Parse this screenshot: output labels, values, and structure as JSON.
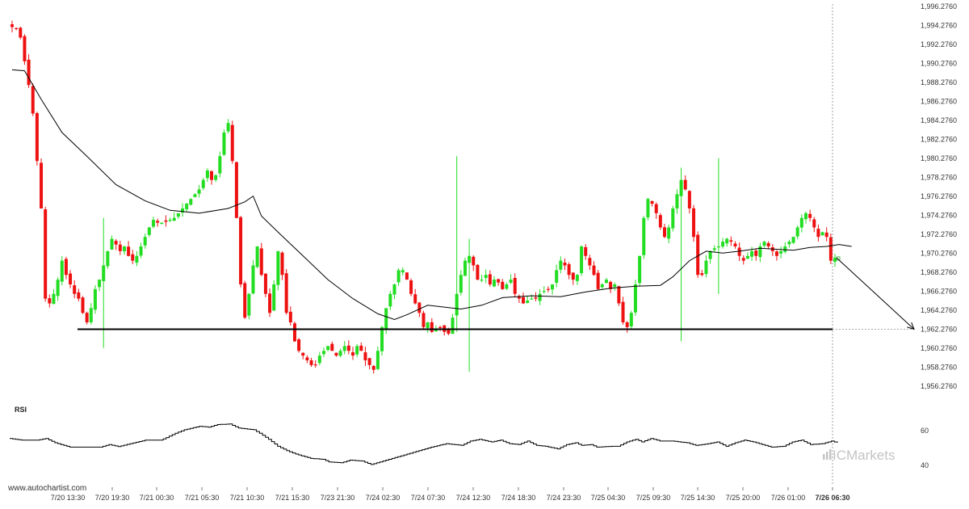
{
  "watermark": "www.autochartist.com",
  "brand": "ICMarkets",
  "indicator_label": "RSI",
  "chart_data": [
    {
      "type": "candlestick",
      "y_ticks": [
        "1,996.2760",
        "1,994.2760",
        "1,992.2760",
        "1,990.2760",
        "1,988.2760",
        "1,986.2760",
        "1,984.2760",
        "1,982.2760",
        "1,980.2760",
        "1,978.2760",
        "1,976.2760",
        "1,974.2760",
        "1,972.2760",
        "1,970.2760",
        "1,968.2760",
        "1,966.2760",
        "1,964.2760",
        "1,962.2760",
        "1,960.2760",
        "1,958.2760",
        "1,956.2760"
      ],
      "ylim": [
        1955.0,
        1996.28
      ],
      "x_ticks": [
        "7/20 13:30",
        "7/20 19:30",
        "7/21 00:30",
        "7/21 05:30",
        "7/21 10:30",
        "7/21 15:30",
        "7/23 21:30",
        "7/24 02:30",
        "7/24 07:30",
        "7/24 12:30",
        "7/24 18:30",
        "7/24 23:30",
        "7/25 04:30",
        "7/25 09:30",
        "7/25 14:30",
        "7/25 20:00",
        "7/26 01:00",
        "7/26 06:30"
      ],
      "support_level": 1962.276,
      "candle_count": 180,
      "moving_average_anchors": [
        [
          0,
          1989.6
        ],
        [
          3,
          1989.5
        ],
        [
          7,
          1986.5
        ],
        [
          12,
          1983.0
        ],
        [
          18,
          1980.5
        ],
        [
          25,
          1977.5
        ],
        [
          32,
          1975.8
        ],
        [
          38,
          1974.8
        ],
        [
          45,
          1974.5
        ],
        [
          52,
          1975.0
        ],
        [
          56,
          1975.7
        ],
        [
          58,
          1976.3
        ],
        [
          60,
          1974.2
        ],
        [
          64,
          1972.5
        ],
        [
          70,
          1970.0
        ],
        [
          76,
          1967.5
        ],
        [
          82,
          1965.5
        ],
        [
          88,
          1963.9
        ],
        [
          92,
          1963.3
        ],
        [
          95,
          1963.8
        ],
        [
          100,
          1964.8
        ],
        [
          108,
          1964.4
        ],
        [
          113,
          1964.8
        ],
        [
          118,
          1965.6
        ],
        [
          125,
          1965.8
        ],
        [
          132,
          1965.7
        ],
        [
          138,
          1966.2
        ],
        [
          144,
          1966.6
        ],
        [
          150,
          1966.8
        ],
        [
          156,
          1966.9
        ],
        [
          159,
          1967.8
        ],
        [
          163,
          1969.5
        ],
        [
          167,
          1970.5
        ],
        [
          171,
          1970.3
        ],
        [
          175,
          1970.5
        ],
        [
          180,
          1970.8
        ],
        [
          188,
          1970.6
        ],
        [
          192,
          1970.9
        ],
        [
          196,
          1971.0
        ],
        [
          199,
          1971.2
        ],
        [
          202,
          1971.0
        ]
      ],
      "candle_anchors": [
        [
          0,
          1994.1
        ],
        [
          1,
          1993.9
        ],
        [
          2,
          1993.0
        ],
        [
          3,
          1990.5
        ],
        [
          4,
          1988.0
        ],
        [
          5,
          1985.0
        ],
        [
          6,
          1980.0
        ],
        [
          7,
          1975.0
        ],
        [
          8,
          1965.5
        ],
        [
          9,
          1965.0
        ],
        [
          10,
          1966.0
        ],
        [
          11,
          1967.5
        ],
        [
          12,
          1969.5
        ],
        [
          13,
          1968.0
        ],
        [
          14,
          1967.0
        ],
        [
          15,
          1966.0
        ],
        [
          16,
          1965.5
        ],
        [
          17,
          1964.0
        ],
        [
          18,
          1963.0
        ],
        [
          19,
          1964.5
        ],
        [
          20,
          1966.5
        ],
        [
          21,
          1967.5
        ],
        [
          22,
          1969.0
        ],
        [
          23,
          1970.5
        ],
        [
          24,
          1971.8
        ],
        [
          25,
          1971.2
        ],
        [
          26,
          1970.5
        ],
        [
          27,
          1971.0
        ],
        [
          28,
          1970.0
        ],
        [
          29,
          1969.5
        ],
        [
          30,
          1970.0
        ],
        [
          31,
          1971.0
        ],
        [
          32,
          1972.0
        ],
        [
          33,
          1973.0
        ],
        [
          34,
          1973.8
        ],
        [
          35,
          1973.5
        ],
        [
          36,
          1973.5
        ],
        [
          37,
          1973.6
        ],
        [
          38,
          1973.8
        ],
        [
          39,
          1974.0
        ],
        [
          40,
          1974.5
        ],
        [
          41,
          1975.0
        ],
        [
          42,
          1975.5
        ],
        [
          43,
          1976.0
        ],
        [
          44,
          1976.5
        ],
        [
          45,
          1977.0
        ],
        [
          46,
          1978.0
        ],
        [
          47,
          1979.0
        ],
        [
          48,
          1978.0
        ],
        [
          49,
          1978.5
        ],
        [
          50,
          1980.5
        ],
        [
          51,
          1983.0
        ],
        [
          52,
          1984.0
        ],
        [
          53,
          1980.0
        ],
        [
          54,
          1974.0
        ],
        [
          55,
          1967.0
        ],
        [
          56,
          1963.5
        ],
        [
          57,
          1966.0
        ],
        [
          58,
          1969.0
        ],
        [
          59,
          1971.0
        ],
        [
          60,
          1968.0
        ],
        [
          61,
          1966.0
        ],
        [
          62,
          1964.0
        ],
        [
          63,
          1967.0
        ],
        [
          64,
          1970.5
        ],
        [
          65,
          1968.0
        ],
        [
          66,
          1964.0
        ],
        [
          67,
          1963.0
        ],
        [
          68,
          1961.0
        ],
        [
          69,
          1960.0
        ],
        [
          70,
          1959.5
        ],
        [
          71,
          1959.0
        ],
        [
          72,
          1958.5
        ],
        [
          73,
          1958.5
        ],
        [
          74,
          1959.5
        ],
        [
          75,
          1960.0
        ],
        [
          76,
          1960.5
        ],
        [
          77,
          1960.0
        ],
        [
          78,
          1959.5
        ],
        [
          79,
          1960.0
        ],
        [
          80,
          1960.5
        ],
        [
          81,
          1960.0
        ],
        [
          82,
          1959.5
        ],
        [
          83,
          1960.5
        ],
        [
          84,
          1960.0
        ],
        [
          85,
          1959.0
        ],
        [
          86,
          1958.5
        ],
        [
          87,
          1958.0
        ],
        [
          88,
          1960.0
        ],
        [
          89,
          1962.5
        ],
        [
          90,
          1964.5
        ],
        [
          91,
          1966.0
        ],
        [
          92,
          1967.0
        ],
        [
          93,
          1968.5
        ],
        [
          94,
          1968.5
        ],
        [
          95,
          1967.5
        ],
        [
          96,
          1966.0
        ],
        [
          97,
          1965.0
        ],
        [
          98,
          1964.0
        ],
        [
          99,
          1962.5
        ],
        [
          100,
          1963.0
        ],
        [
          101,
          1962.0
        ],
        [
          102,
          1962.3
        ],
        [
          103,
          1962.5
        ],
        [
          104,
          1962.0
        ],
        [
          105,
          1961.8
        ],
        [
          106,
          1963.5
        ],
        [
          107,
          1966.0
        ],
        [
          108,
          1968.0
        ],
        [
          109,
          1969.5
        ],
        [
          110,
          1970.0
        ],
        [
          111,
          1969.0
        ],
        [
          112,
          1967.5
        ],
        [
          113,
          1967.5
        ],
        [
          114,
          1968.0
        ],
        [
          115,
          1967.0
        ],
        [
          116,
          1967.5
        ],
        [
          117,
          1967.2
        ],
        [
          118,
          1966.5
        ],
        [
          119,
          1967.0
        ],
        [
          120,
          1967.5
        ],
        [
          121,
          1966.0
        ],
        [
          122,
          1965.5
        ],
        [
          123,
          1965.0
        ],
        [
          124,
          1965.3
        ],
        [
          125,
          1965.5
        ],
        [
          126,
          1965.5
        ],
        [
          127,
          1966.0
        ],
        [
          128,
          1966.3
        ],
        [
          129,
          1966.5
        ],
        [
          130,
          1967.0
        ],
        [
          131,
          1968.5
        ],
        [
          132,
          1969.5
        ],
        [
          133,
          1969.0
        ],
        [
          134,
          1968.0
        ],
        [
          135,
          1967.5
        ],
        [
          136,
          1968.0
        ],
        [
          137,
          1971.0
        ],
        [
          138,
          1970.0
        ],
        [
          139,
          1969.0
        ],
        [
          140,
          1968.0
        ],
        [
          141,
          1966.5
        ],
        [
          142,
          1967.0
        ],
        [
          143,
          1967.5
        ],
        [
          144,
          1966.5
        ],
        [
          145,
          1967.0
        ],
        [
          146,
          1965.0
        ],
        [
          147,
          1963.0
        ],
        [
          148,
          1962.5
        ],
        [
          149,
          1964.0
        ],
        [
          150,
          1967.0
        ],
        [
          151,
          1970.0
        ],
        [
          152,
          1974.0
        ],
        [
          153,
          1976.0
        ],
        [
          154,
          1975.5
        ],
        [
          155,
          1974.5
        ],
        [
          156,
          1973.0
        ],
        [
          157,
          1972.0
        ],
        [
          158,
          1973.0
        ],
        [
          159,
          1975.0
        ],
        [
          160,
          1976.5
        ],
        [
          161,
          1978.0
        ],
        [
          162,
          1977.0
        ],
        [
          163,
          1975.0
        ],
        [
          164,
          1972.0
        ],
        [
          165,
          1968.0
        ],
        [
          166,
          1968.0
        ],
        [
          167,
          1969.5
        ],
        [
          168,
          1970.5
        ],
        [
          169,
          1970.8
        ],
        [
          170,
          1971.0
        ],
        [
          171,
          1971.5
        ],
        [
          172,
          1971.8
        ],
        [
          173,
          1971.5
        ],
        [
          174,
          1971.0
        ],
        [
          175,
          1970.0
        ],
        [
          176,
          1969.5
        ],
        [
          177,
          1970.0
        ],
        [
          178,
          1970.5
        ],
        [
          179,
          1970.0
        ],
        [
          180,
          1971.0
        ],
        [
          181,
          1971.5
        ],
        [
          182,
          1971.0
        ],
        [
          183,
          1970.5
        ],
        [
          184,
          1970.0
        ],
        [
          185,
          1970.5
        ],
        [
          186,
          1971.0
        ],
        [
          187,
          1971.5
        ],
        [
          188,
          1972.0
        ],
        [
          189,
          1973.0
        ],
        [
          190,
          1974.0
        ],
        [
          191,
          1974.5
        ],
        [
          192,
          1974.0
        ],
        [
          193,
          1973.0
        ],
        [
          194,
          1972.0
        ],
        [
          195,
          1972.5
        ],
        [
          196,
          1972.0
        ],
        [
          197,
          1969.5
        ],
        [
          198,
          1969.8
        ]
      ],
      "spikes": [
        {
          "index": 22,
          "high": 1974.0,
          "low": 1960.3
        },
        {
          "index": 107,
          "high": 1980.5,
          "low": 1962.0
        },
        {
          "index": 110,
          "high": 1971.8,
          "low": 1957.8
        },
        {
          "index": 161,
          "high": 1979.3,
          "low": 1961.0
        },
        {
          "index": 170,
          "high": 1980.3,
          "low": 1966.0
        }
      ],
      "projection": {
        "from": 1969.8,
        "to": 1962.276
      }
    },
    {
      "type": "line",
      "name": "RSI",
      "y_ticks": [
        "60",
        "40"
      ],
      "ylim": [
        30,
        70
      ],
      "values_anchors": [
        [
          0,
          55.5
        ],
        [
          4,
          54.5
        ],
        [
          9,
          54.5
        ],
        [
          12,
          55.5
        ],
        [
          15,
          53
        ],
        [
          20,
          50.5
        ],
        [
          30,
          50.5
        ],
        [
          33,
          52
        ],
        [
          36,
          50.8
        ],
        [
          40,
          52.5
        ],
        [
          45,
          54.5
        ],
        [
          50,
          54.5
        ],
        [
          52,
          56
        ],
        [
          55,
          58.5
        ],
        [
          58,
          60.5
        ],
        [
          63,
          62.5
        ],
        [
          66,
          62
        ],
        [
          69,
          63.5
        ],
        [
          73,
          63.8
        ],
        [
          76,
          61.5
        ],
        [
          81,
          60.5
        ],
        [
          83,
          58.5
        ],
        [
          86,
          55
        ],
        [
          89,
          51
        ],
        [
          92,
          48.5
        ],
        [
          95,
          46.5
        ],
        [
          100,
          44
        ],
        [
          104,
          43.5
        ],
        [
          106,
          42
        ],
        [
          110,
          41.5
        ],
        [
          113,
          43
        ],
        [
          117,
          42.5
        ],
        [
          120,
          40.5
        ],
        [
          125,
          43
        ],
        [
          130,
          45.5
        ],
        [
          135,
          48
        ],
        [
          140,
          50.5
        ],
        [
          145,
          52.5
        ],
        [
          150,
          51.5
        ],
        [
          153,
          54
        ],
        [
          156,
          55
        ],
        [
          160,
          53.5
        ],
        [
          163,
          54.5
        ],
        [
          166,
          52.5
        ],
        [
          169,
          52
        ],
        [
          172,
          54
        ],
        [
          175,
          51.5
        ],
        [
          178,
          51
        ],
        [
          182,
          49.5
        ],
        [
          185,
          52
        ],
        [
          188,
          53
        ],
        [
          190,
          51.5
        ],
        [
          193,
          52
        ],
        [
          195,
          50.5
        ],
        [
          200,
          51
        ],
        [
          202,
          51
        ],
        [
          205,
          53.5
        ],
        [
          208,
          55
        ],
        [
          210,
          53.5
        ],
        [
          213,
          55.5
        ],
        [
          216,
          54
        ],
        [
          220,
          54
        ],
        [
          225,
          53
        ],
        [
          228,
          51.5
        ],
        [
          232,
          52.5
        ],
        [
          235,
          53.5
        ],
        [
          238,
          51
        ],
        [
          241,
          53
        ],
        [
          244,
          54.5
        ],
        [
          247,
          53.5
        ],
        [
          250,
          52
        ],
        [
          253,
          50.5
        ],
        [
          257,
          51
        ],
        [
          260,
          53.5
        ],
        [
          263,
          54.5
        ],
        [
          266,
          52
        ],
        [
          270,
          52.5
        ],
        [
          273,
          54
        ],
        [
          275,
          53
        ]
      ]
    }
  ]
}
